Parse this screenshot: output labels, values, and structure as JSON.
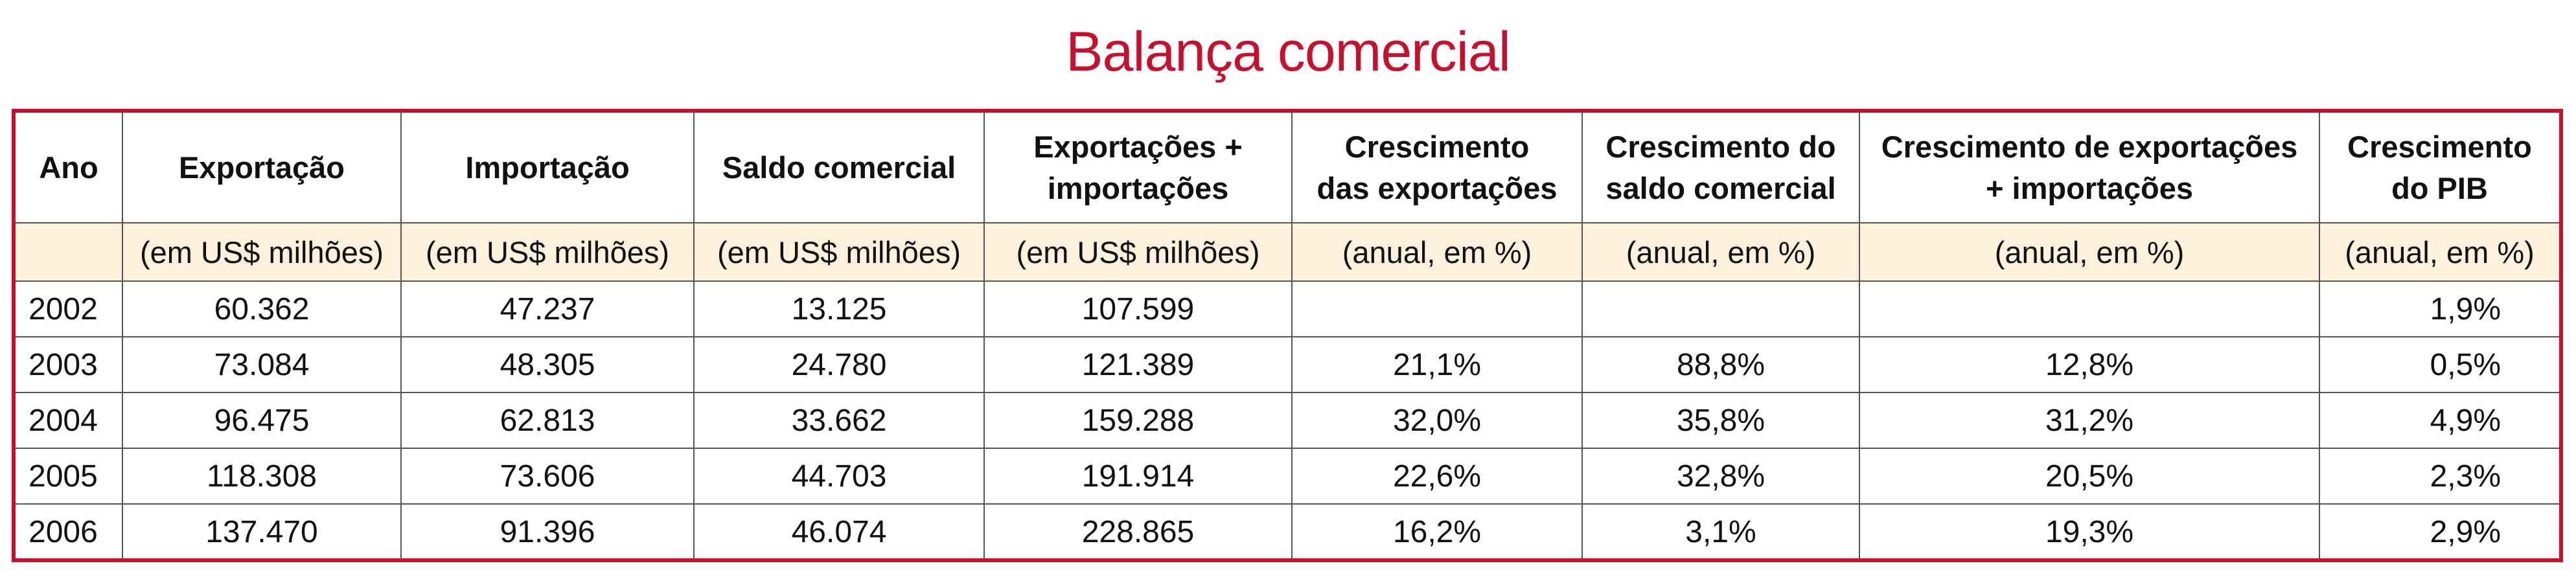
{
  "title": "Balança comercial",
  "columns": [
    {
      "key": "ano",
      "label": "Ano",
      "unit": ""
    },
    {
      "key": "exportacao",
      "label": "Exportação",
      "unit": "(em US$ milhões)"
    },
    {
      "key": "importacao",
      "label": "Importação",
      "unit": "(em US$ milhões)"
    },
    {
      "key": "saldo",
      "label": "Saldo comercial",
      "unit": "(em US$ milhões)"
    },
    {
      "key": "exp_imp",
      "label": "Exportações + importações",
      "unit": "(em US$ milhões)"
    },
    {
      "key": "cresc_exp",
      "label": "Crescimento das exportações",
      "unit": "(anual, em %)"
    },
    {
      "key": "cresc_saldo",
      "label": "Crescimento do saldo comercial",
      "unit": "(anual, em %)"
    },
    {
      "key": "cresc_exp_imp",
      "label": "Crescimento de exportações + importações",
      "unit": "(anual, em %)"
    },
    {
      "key": "cresc_pib",
      "label": "Crescimento do PIB",
      "unit": "(anual, em %)"
    }
  ],
  "rows": [
    [
      "2002",
      "60.362",
      "47.237",
      "13.125",
      "107.599",
      "",
      "",
      "",
      "1,9%"
    ],
    [
      "2003",
      "73.084",
      "48.305",
      "24.780",
      "121.389",
      "21,1%",
      "88,8%",
      "12,8%",
      "0,5%"
    ],
    [
      "2004",
      "96.475",
      "62.813",
      "33.662",
      "159.288",
      "32,0%",
      "35,8%",
      "31,2%",
      "4,9%"
    ],
    [
      "2005",
      "118.308",
      "73.606",
      "44.703",
      "191.914",
      "22,6%",
      "32,8%",
      "20,5%",
      "2,3%"
    ],
    [
      "2006",
      "137.470",
      "91.396",
      "46.074",
      "228.865",
      "16,2%",
      "3,1%",
      "19,3%",
      "2,9%"
    ]
  ]
}
